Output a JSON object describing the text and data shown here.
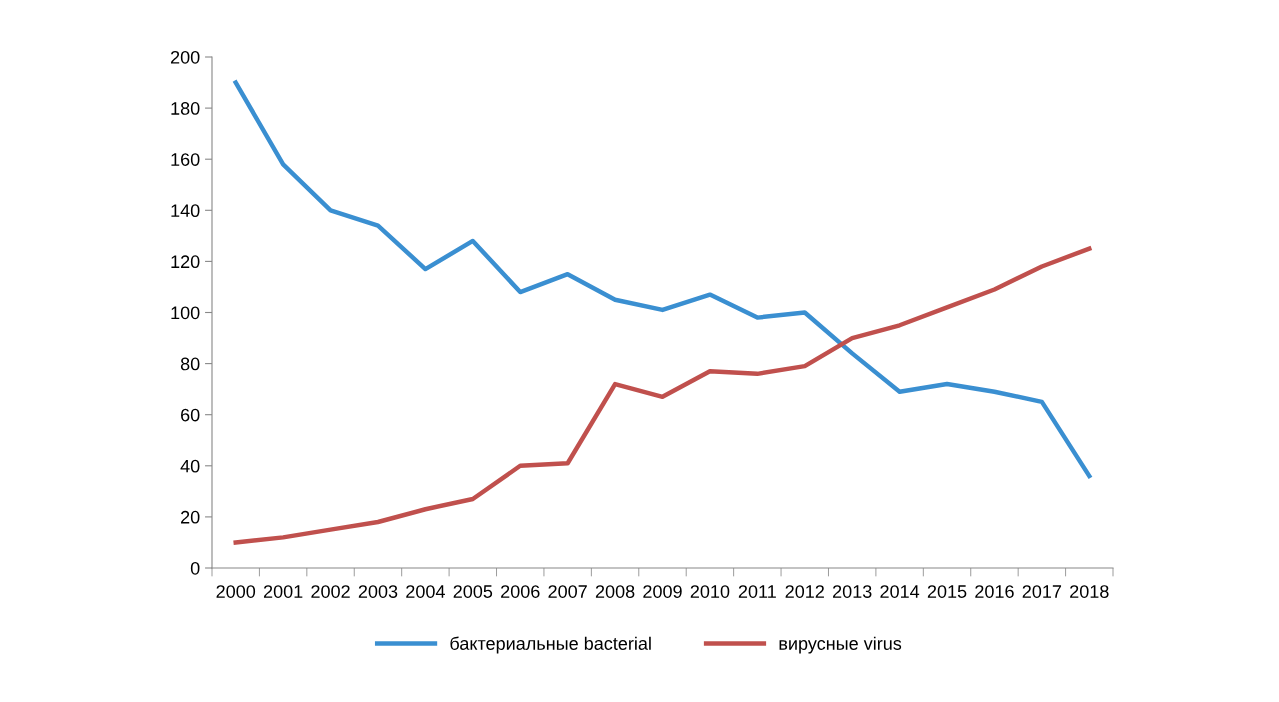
{
  "chart_data": {
    "type": "line",
    "categories": [
      "2000",
      "2001",
      "2002",
      "2003",
      "2004",
      "2005",
      "2006",
      "2007",
      "2008",
      "2009",
      "2010",
      "2011",
      "2012",
      "2013",
      "2014",
      "2015",
      "2016",
      "2017",
      "2018"
    ],
    "series": [
      {
        "name": "бактериальные bacterial",
        "color": "#3a8fd1",
        "values": [
          190,
          158,
          140,
          134,
          117,
          128,
          108,
          115,
          105,
          101,
          107,
          98,
          100,
          84,
          69,
          72,
          69,
          65,
          36
        ]
      },
      {
        "name": "вирусные virus",
        "color": "#c0504d",
        "values": [
          10,
          12,
          15,
          18,
          23,
          27,
          40,
          41,
          72,
          67,
          77,
          76,
          79,
          90,
          95,
          102,
          109,
          118,
          125
        ]
      }
    ],
    "ylim": [
      0,
      200
    ],
    "yticks": [
      0,
      20,
      40,
      60,
      80,
      100,
      120,
      140,
      160,
      180,
      200
    ],
    "grid": false,
    "legend": "bottom",
    "marker": "none",
    "line_style": "solid"
  }
}
